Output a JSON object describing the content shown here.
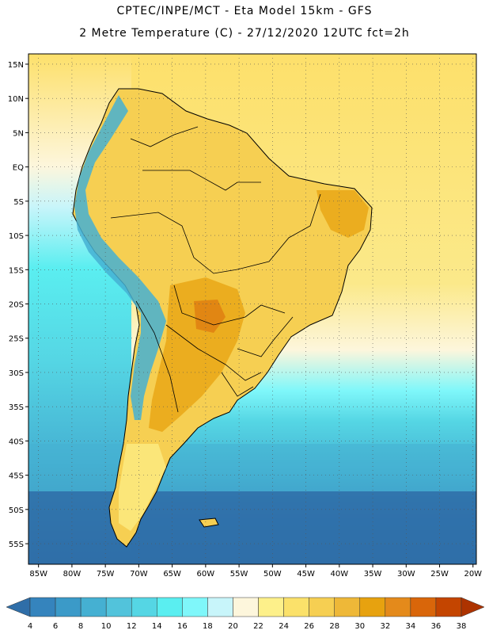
{
  "header": {
    "line1": "CPTEC/INPE/MCT -  Eta Model 15km - GFS",
    "line2": "2 Metre Temperature (C) - 27/12/2020 12UTC fct=2h"
  },
  "axes": {
    "lat_labels": [
      "15N",
      "10N",
      "5N",
      "EQ",
      "5S",
      "10S",
      "15S",
      "20S",
      "25S",
      "30S",
      "35S",
      "40S",
      "45S",
      "50S",
      "55S"
    ],
    "lat_values": [
      15,
      10,
      5,
      0,
      -5,
      -10,
      -15,
      -20,
      -25,
      -30,
      -35,
      -40,
      -45,
      -50,
      -55
    ],
    "lon_labels": [
      "85W",
      "80W",
      "75W",
      "70W",
      "65W",
      "60W",
      "55W",
      "50W",
      "45W",
      "40W",
      "35W",
      "30W",
      "25W",
      "20W"
    ],
    "lon_values": [
      -85,
      -80,
      -75,
      -70,
      -65,
      -60,
      -55,
      -50,
      -45,
      -40,
      -35,
      -30,
      -25,
      -20
    ]
  },
  "colorbar": {
    "labels": [
      "4",
      "6",
      "8",
      "10",
      "12",
      "14",
      "16",
      "18",
      "20",
      "22",
      "24",
      "26",
      "28",
      "30",
      "32",
      "34",
      "36",
      "38"
    ],
    "colors": [
      "#2f6ea8",
      "#3584bd",
      "#3b9ac8",
      "#45b0d2",
      "#52c3db",
      "#55d6e4",
      "#5aeef0",
      "#7ff7fa",
      "#c8f5fa",
      "#fdf6dc",
      "#fdf08a",
      "#fbe16a",
      "#f6cf52",
      "#eeb838",
      "#e7a20f",
      "#e48a1b",
      "#d9660a",
      "#c44500",
      "#ad3300"
    ]
  },
  "colors": {
    "ocean_cold": "#2f6ea8",
    "ocean_mid": "#45b0d2",
    "ocean_cool": "#5aeef0",
    "ocean_warm": "#fde06b",
    "land_hot": "#e7a20f",
    "land_warm": "#f6cf52",
    "andes_cold": "#45b0d2"
  }
}
